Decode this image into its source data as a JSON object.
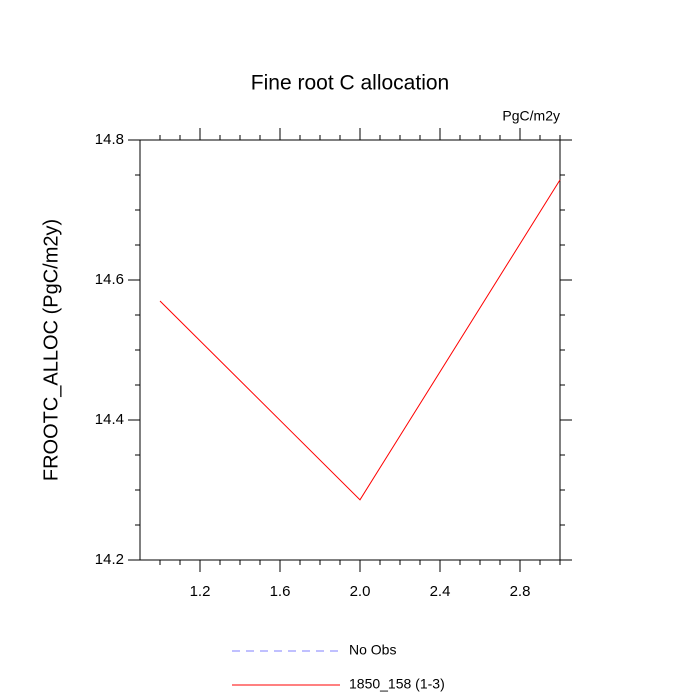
{
  "chart_data": {
    "type": "line",
    "title": "Fine root C allocation",
    "units": "PgC/m2y",
    "y_label": "FROOTC_ALLOC  (PgC/m2y)",
    "x": [
      1,
      2,
      3
    ],
    "series": [
      {
        "name": "No Obs",
        "color": "#8080ff",
        "dash": true,
        "values": [
          null,
          null,
          null
        ]
      },
      {
        "name": "1850_158 (1-3)",
        "color": "#ff0000",
        "dash": false,
        "values": [
          14.57,
          14.286,
          14.743
        ]
      }
    ],
    "xlim": [
      0.9,
      3.0
    ],
    "xticks": [
      1.2,
      1.6,
      {
        "value": 2,
        "label": "2.0"
      },
      2.4,
      2.8
    ],
    "xminorticks": [
      1.0,
      1.1,
      1.3,
      1.4,
      1.5,
      1.7,
      1.8,
      1.9,
      2.1,
      2.2,
      2.3,
      2.5,
      2.6,
      2.7,
      2.9,
      3.0
    ],
    "ylim": [
      14.2,
      14.8
    ],
    "yticks": [
      14.2,
      14.4,
      14.6,
      14.8
    ],
    "yminorticks": [
      14.25,
      14.3,
      14.35,
      14.45,
      14.5,
      14.55,
      14.65,
      14.7,
      14.75
    ]
  }
}
